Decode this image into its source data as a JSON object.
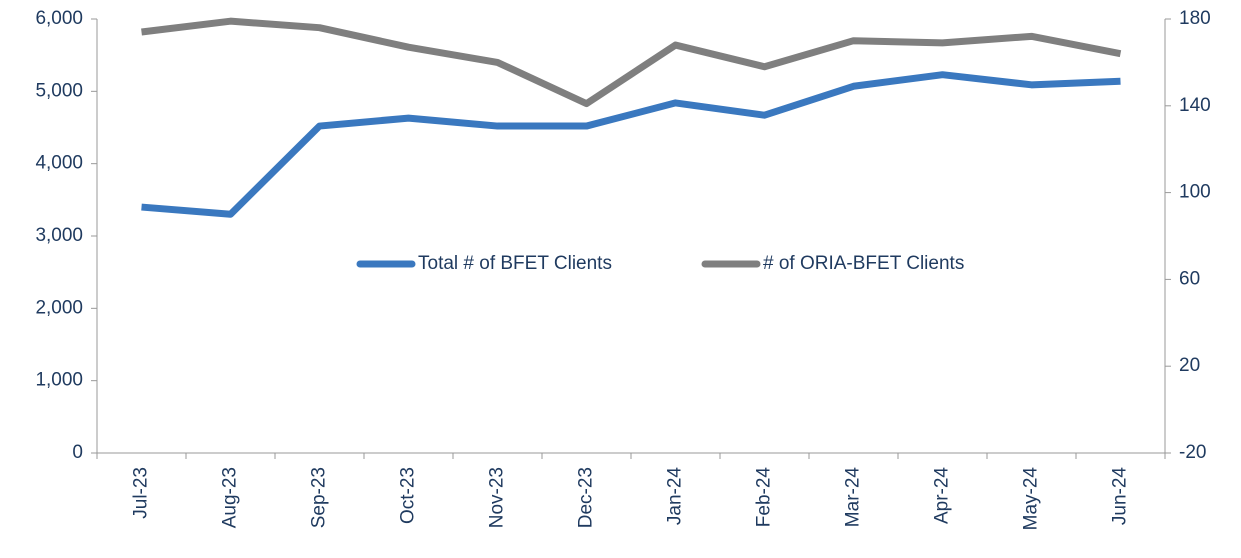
{
  "chart_data": {
    "type": "line",
    "categories": [
      "Jul-23",
      "Aug-23",
      "Sep-23",
      "Oct-23",
      "Nov-23",
      "Dec-23",
      "Jan-24",
      "Feb-24",
      "Mar-24",
      "Apr-24",
      "May-24",
      "Jun-24"
    ],
    "series": [
      {
        "name": "Total # of BFET Clients",
        "color": "#3a78bf",
        "values": [
          3400,
          3300,
          4520,
          4630,
          4520,
          4520,
          4840,
          4670,
          5070,
          5230,
          5090,
          5140
        ]
      },
      {
        "name": "# of ORIA-BFET Clients",
        "color": "#7f7f7f",
        "axis": "y2",
        "values": [
          174,
          179,
          176,
          167,
          160,
          141,
          168,
          158,
          170,
          169,
          172,
          164
        ]
      }
    ],
    "ylim": [
      0,
      6000
    ],
    "yticks": [
      {
        "value": 0,
        "label": "0"
      },
      {
        "value": 1000,
        "label": "1,000"
      },
      {
        "value": 2000,
        "label": "2,000"
      },
      {
        "value": 3000,
        "label": "3,000"
      },
      {
        "value": 4000,
        "label": "4,000"
      },
      {
        "value": 5000,
        "label": "5,000"
      },
      {
        "value": 6000,
        "label": "6,000"
      }
    ],
    "y2lim": [
      -20,
      180
    ],
    "y2ticks": [
      -20,
      20,
      60,
      100,
      140,
      180
    ],
    "legend": "center"
  }
}
